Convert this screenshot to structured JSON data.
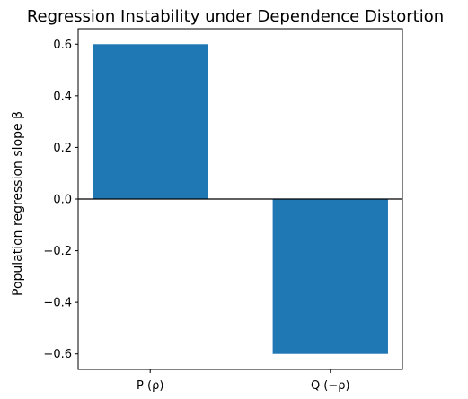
{
  "chart_data": {
    "type": "bar",
    "title": "Regression Instability under Dependence Distortion",
    "xlabel": "",
    "ylabel": "Population regression slope β",
    "categories": [
      "P (ρ)",
      "Q (−ρ)"
    ],
    "values": [
      0.6,
      -0.6
    ],
    "ylim": [
      -0.66,
      0.66
    ],
    "yticks": [
      0.6,
      0.4,
      0.2,
      0.0,
      -0.2,
      -0.4,
      -0.6
    ],
    "ytick_labels": [
      "0.6",
      "0.4",
      "0.2",
      "0.0",
      "−0.2",
      "−0.4",
      "−0.6"
    ],
    "bar_color": "#1f77b4",
    "zero_line": true,
    "grid": false,
    "legend": "none"
  }
}
